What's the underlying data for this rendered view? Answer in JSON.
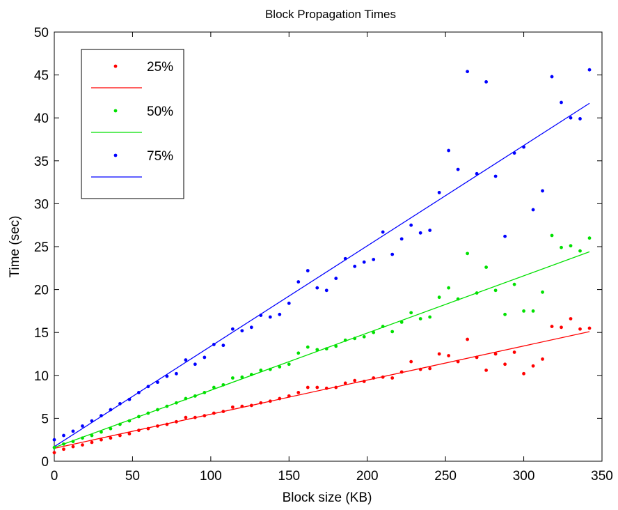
{
  "chart_data": {
    "type": "scatter",
    "title": "Block Propagation Times",
    "xlabel": "Block size (KB)",
    "ylabel": "Time (sec)",
    "xlim": [
      0,
      350
    ],
    "ylim": [
      0,
      50
    ],
    "x_ticks": [
      0,
      50,
      100,
      150,
      200,
      250,
      300,
      350
    ],
    "y_ticks": [
      0,
      5,
      10,
      15,
      20,
      25,
      30,
      35,
      40,
      45,
      50
    ],
    "grid": false,
    "legend_position": "top-left",
    "series": [
      {
        "name": "25%",
        "color": "#ff0000",
        "marker": "dot",
        "fit_line": {
          "x": [
            0,
            342
          ],
          "y": [
            1.5,
            15.1
          ]
        },
        "points": [
          [
            0,
            1.0
          ],
          [
            6,
            1.4
          ],
          [
            12,
            1.7
          ],
          [
            18,
            1.9
          ],
          [
            24,
            2.2
          ],
          [
            30,
            2.5
          ],
          [
            36,
            2.7
          ],
          [
            42,
            3.0
          ],
          [
            48,
            3.2
          ],
          [
            54,
            3.6
          ],
          [
            60,
            3.8
          ],
          [
            66,
            4.1
          ],
          [
            72,
            4.3
          ],
          [
            78,
            4.6
          ],
          [
            84,
            5.1
          ],
          [
            90,
            5.1
          ],
          [
            96,
            5.3
          ],
          [
            102,
            5.6
          ],
          [
            108,
            5.8
          ],
          [
            114,
            6.3
          ],
          [
            120,
            6.4
          ],
          [
            126,
            6.5
          ],
          [
            132,
            6.8
          ],
          [
            138,
            7.0
          ],
          [
            144,
            7.3
          ],
          [
            150,
            7.6
          ],
          [
            156,
            8.0
          ],
          [
            162,
            8.6
          ],
          [
            168,
            8.6
          ],
          [
            174,
            8.5
          ],
          [
            180,
            8.6
          ],
          [
            186,
            9.1
          ],
          [
            192,
            9.4
          ],
          [
            198,
            9.3
          ],
          [
            204,
            9.7
          ],
          [
            210,
            9.8
          ],
          [
            216,
            9.7
          ],
          [
            222,
            10.4
          ],
          [
            228,
            11.6
          ],
          [
            234,
            10.7
          ],
          [
            240,
            10.8
          ],
          [
            246,
            12.5
          ],
          [
            252,
            12.3
          ],
          [
            258,
            11.6
          ],
          [
            264,
            14.2
          ],
          [
            270,
            12.1
          ],
          [
            276,
            10.6
          ],
          [
            282,
            12.5
          ],
          [
            288,
            11.3
          ],
          [
            294,
            12.7
          ],
          [
            300,
            10.2
          ],
          [
            306,
            11.1
          ],
          [
            312,
            11.9
          ],
          [
            318,
            15.7
          ],
          [
            324,
            15.6
          ],
          [
            330,
            16.6
          ],
          [
            336,
            15.4
          ],
          [
            342,
            15.5
          ]
        ]
      },
      {
        "name": "50%",
        "color": "#00e000",
        "marker": "dot",
        "fit_line": {
          "x": [
            0,
            342
          ],
          "y": [
            1.6,
            24.4
          ]
        },
        "points": [
          [
            0,
            1.6
          ],
          [
            6,
            2.0
          ],
          [
            12,
            2.3
          ],
          [
            18,
            2.7
          ],
          [
            24,
            3.0
          ],
          [
            30,
            3.4
          ],
          [
            36,
            3.8
          ],
          [
            42,
            4.3
          ],
          [
            48,
            4.7
          ],
          [
            54,
            5.2
          ],
          [
            60,
            5.6
          ],
          [
            66,
            6.0
          ],
          [
            72,
            6.4
          ],
          [
            78,
            6.8
          ],
          [
            84,
            7.3
          ],
          [
            90,
            7.6
          ],
          [
            96,
            8.0
          ],
          [
            102,
            8.6
          ],
          [
            108,
            8.9
          ],
          [
            114,
            9.7
          ],
          [
            120,
            9.8
          ],
          [
            126,
            10.1
          ],
          [
            132,
            10.6
          ],
          [
            138,
            10.7
          ],
          [
            144,
            11.0
          ],
          [
            150,
            11.3
          ],
          [
            156,
            12.6
          ],
          [
            162,
            13.3
          ],
          [
            168,
            13.0
          ],
          [
            174,
            13.1
          ],
          [
            180,
            13.4
          ],
          [
            186,
            14.1
          ],
          [
            192,
            14.3
          ],
          [
            198,
            14.5
          ],
          [
            204,
            15.0
          ],
          [
            210,
            15.7
          ],
          [
            216,
            15.1
          ],
          [
            222,
            16.2
          ],
          [
            228,
            17.3
          ],
          [
            234,
            16.6
          ],
          [
            240,
            16.8
          ],
          [
            246,
            19.1
          ],
          [
            252,
            20.2
          ],
          [
            258,
            18.9
          ],
          [
            264,
            24.2
          ],
          [
            270,
            19.6
          ],
          [
            276,
            22.6
          ],
          [
            282,
            19.9
          ],
          [
            288,
            17.1
          ],
          [
            294,
            20.6
          ],
          [
            300,
            17.5
          ],
          [
            306,
            17.5
          ],
          [
            312,
            19.7
          ],
          [
            318,
            26.3
          ],
          [
            324,
            24.9
          ],
          [
            330,
            25.1
          ],
          [
            336,
            24.5
          ],
          [
            342,
            26.0
          ]
        ]
      },
      {
        "name": "75%",
        "color": "#0000ff",
        "marker": "dot",
        "fit_line": {
          "x": [
            0,
            342
          ],
          "y": [
            1.7,
            41.7
          ]
        },
        "points": [
          [
            0,
            2.5
          ],
          [
            6,
            3.0
          ],
          [
            12,
            3.5
          ],
          [
            18,
            4.1
          ],
          [
            24,
            4.7
          ],
          [
            30,
            5.3
          ],
          [
            36,
            6.0
          ],
          [
            42,
            6.7
          ],
          [
            48,
            7.2
          ],
          [
            54,
            8.0
          ],
          [
            60,
            8.7
          ],
          [
            66,
            9.2
          ],
          [
            72,
            9.9
          ],
          [
            78,
            10.2
          ],
          [
            84,
            11.8
          ],
          [
            90,
            11.3
          ],
          [
            96,
            12.1
          ],
          [
            102,
            13.6
          ],
          [
            108,
            13.5
          ],
          [
            114,
            15.4
          ],
          [
            120,
            15.2
          ],
          [
            126,
            15.6
          ],
          [
            132,
            17.0
          ],
          [
            138,
            16.8
          ],
          [
            144,
            17.1
          ],
          [
            150,
            18.4
          ],
          [
            156,
            20.9
          ],
          [
            162,
            22.2
          ],
          [
            168,
            20.2
          ],
          [
            174,
            19.9
          ],
          [
            180,
            21.3
          ],
          [
            186,
            23.6
          ],
          [
            192,
            22.7
          ],
          [
            198,
            23.2
          ],
          [
            204,
            23.5
          ],
          [
            210,
            26.7
          ],
          [
            216,
            24.1
          ],
          [
            222,
            25.9
          ],
          [
            228,
            27.5
          ],
          [
            234,
            26.6
          ],
          [
            240,
            26.9
          ],
          [
            246,
            31.3
          ],
          [
            252,
            36.2
          ],
          [
            258,
            34.0
          ],
          [
            264,
            45.4
          ],
          [
            270,
            33.5
          ],
          [
            276,
            44.2
          ],
          [
            282,
            33.2
          ],
          [
            288,
            26.2
          ],
          [
            294,
            35.9
          ],
          [
            300,
            36.6
          ],
          [
            306,
            29.3
          ],
          [
            312,
            31.5
          ],
          [
            318,
            44.8
          ],
          [
            324,
            41.8
          ],
          [
            330,
            40.0
          ],
          [
            336,
            39.9
          ],
          [
            342,
            45.6
          ]
        ]
      }
    ]
  }
}
